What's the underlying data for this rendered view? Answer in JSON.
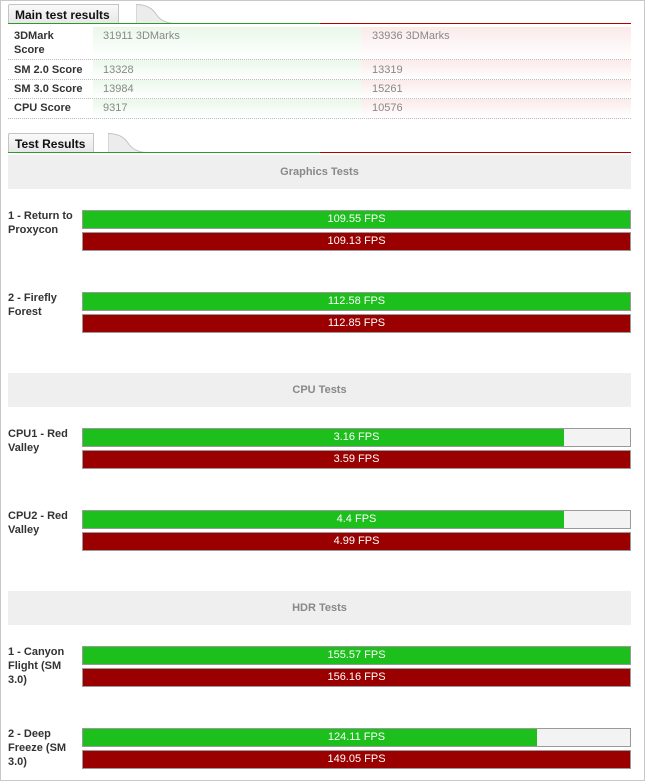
{
  "main_tab": {
    "title": "Main test results"
  },
  "main_rows": [
    {
      "label": "3DMark Score",
      "a": "31911 3DMarks",
      "b": "33936 3DMarks"
    },
    {
      "label": "SM 2.0 Score",
      "a": "13328",
      "b": "13319"
    },
    {
      "label": "SM 3.0 Score",
      "a": "13984",
      "b": "15261"
    },
    {
      "label": "CPU Score",
      "a": "9317",
      "b": "10576"
    }
  ],
  "results_tab": {
    "title": "Test Results"
  },
  "sections": {
    "graphics": "Graphics Tests",
    "cpu": "CPU Tests",
    "hdr": "HDR Tests"
  },
  "tests": [
    {
      "label": "1 - Return to Proxycon",
      "green": "109.55 FPS",
      "red": "109.13 FPS",
      "green_fraction": 1.0,
      "red_fraction": 1.0
    },
    {
      "label": "2 - Firefly Forest",
      "green": "112.58 FPS",
      "red": "112.85 FPS",
      "green_fraction": 1.0,
      "red_fraction": 1.0
    },
    {
      "label": "CPU1 - Red Valley",
      "green": "3.16 FPS",
      "red": "3.59 FPS",
      "green_fraction": 0.88,
      "red_fraction": 1.0
    },
    {
      "label": "CPU2 - Red Valley",
      "green": "4.4 FPS",
      "red": "4.99 FPS",
      "green_fraction": 0.88,
      "red_fraction": 1.0
    },
    {
      "label": "1 - Canyon Flight (SM 3.0)",
      "green": "155.57 FPS",
      "red": "156.16 FPS",
      "green_fraction": 1.0,
      "red_fraction": 1.0
    },
    {
      "label": "2 - Deep Freeze (SM 3.0)",
      "green": "124.11 FPS",
      "red": "149.05 FPS",
      "green_fraction": 0.83,
      "red_fraction": 1.0
    }
  ],
  "colors": {
    "green": "#1cbf1c",
    "red": "#9b0000",
    "green_line": "#2a9a2a",
    "red_line": "#b00000"
  }
}
